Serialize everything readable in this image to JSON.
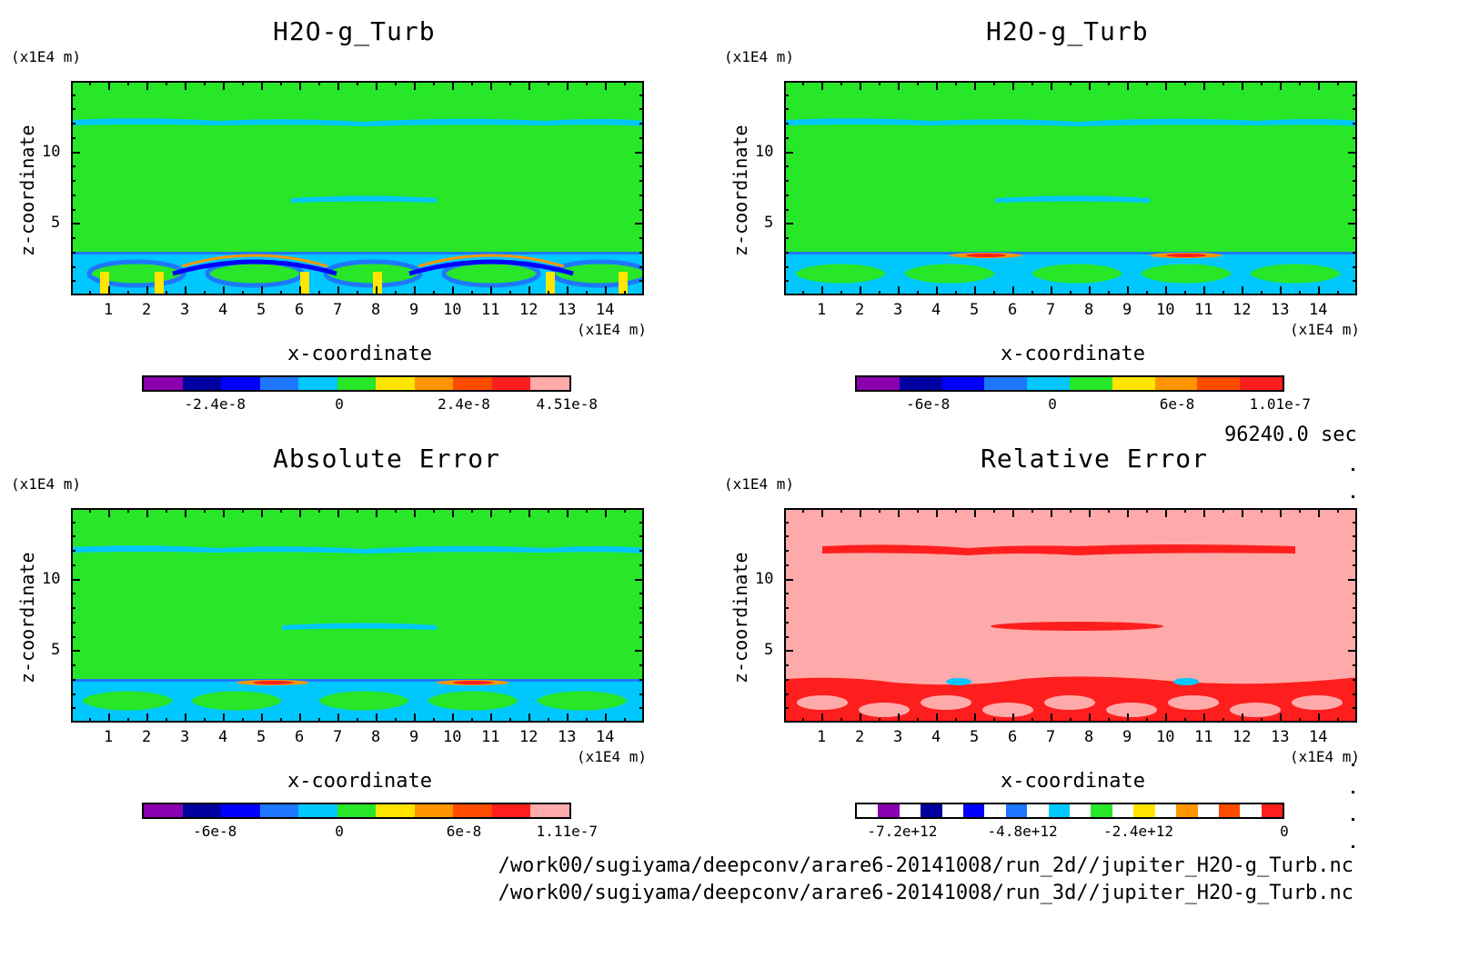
{
  "panels": [
    {
      "id": "p1",
      "title": "H2O-g_Turb",
      "y_unit": "(x1E4 m)",
      "x_unit": "(x1E4 m)",
      "xlabel": "x-coordinate",
      "ylabel": "z-coordinate",
      "xticks": [
        "1",
        "2",
        "3",
        "4",
        "5",
        "6",
        "7",
        "8",
        "9",
        "10",
        "11",
        "12",
        "13",
        "14"
      ],
      "yticks": [
        "5",
        "10"
      ],
      "field": "green-background-with-turbulent-boundary-layer",
      "colorbar": {
        "colors": [
          "#8a00b0",
          "#0000a0",
          "#0000ff",
          "#1e78ff",
          "#00c8ff",
          "#28e628",
          "#ffe600",
          "#ff9600",
          "#ff4b00",
          "#ff1e1e",
          "#ffaaaa"
        ],
        "labels": [
          "-2.4e-8",
          "0",
          "2.4e-8",
          "4.51e-8"
        ]
      }
    },
    {
      "id": "p2",
      "title": "H2O-g_Turb",
      "y_unit": "(x1E4 m)",
      "x_unit": "(x1E4 m)",
      "xlabel": "x-coordinate",
      "ylabel": "z-coordinate",
      "xticks": [
        "1",
        "2",
        "3",
        "4",
        "5",
        "6",
        "7",
        "8",
        "9",
        "10",
        "11",
        "12",
        "13",
        "14"
      ],
      "yticks": [
        "5",
        "10"
      ],
      "field": "green-background-with-turbulent-boundary-layer",
      "colorbar": {
        "colors": [
          "#8a00b0",
          "#0000a0",
          "#0000ff",
          "#1e78ff",
          "#00c8ff",
          "#28e628",
          "#ffe600",
          "#ff9600",
          "#ff4b00",
          "#ff1e1e"
        ],
        "labels": [
          "-6e-8",
          "0",
          "6e-8",
          "1.01e-7"
        ]
      }
    },
    {
      "id": "p3",
      "title": "Absolute Error",
      "y_unit": "(x1E4 m)",
      "x_unit": "(x1E4 m)",
      "xlabel": "x-coordinate",
      "ylabel": "z-coordinate",
      "xticks": [
        "1",
        "2",
        "3",
        "4",
        "5",
        "6",
        "7",
        "8",
        "9",
        "10",
        "11",
        "12",
        "13",
        "14"
      ],
      "yticks": [
        "5",
        "10"
      ],
      "field": "green-background-with-turbulent-boundary-layer",
      "colorbar": {
        "colors": [
          "#8a00b0",
          "#0000a0",
          "#0000ff",
          "#1e78ff",
          "#00c8ff",
          "#28e628",
          "#ffe600",
          "#ff9600",
          "#ff4b00",
          "#ff1e1e",
          "#ffaaaa"
        ],
        "labels": [
          "-6e-8",
          "0",
          "6e-8",
          "1.11e-7"
        ]
      }
    },
    {
      "id": "p4",
      "title": "Relative Error",
      "y_unit": "(x1E4 m)",
      "x_unit": "(x1E4 m)",
      "xlabel": "x-coordinate",
      "ylabel": "z-coordinate",
      "xticks": [
        "1",
        "2",
        "3",
        "4",
        "5",
        "6",
        "7",
        "8",
        "9",
        "10",
        "11",
        "12",
        "13",
        "14"
      ],
      "yticks": [
        "5",
        "10"
      ],
      "field": "pink-background-with-red-patches",
      "colorbar": {
        "colors": [
          "#ffffff",
          "#8a00b0",
          "#ffffff",
          "#0000a0",
          "#ffffff",
          "#0000ff",
          "#ffffff",
          "#1e78ff",
          "#ffffff",
          "#00c8ff",
          "#ffffff",
          "#28e628",
          "#ffffff",
          "#ffe600",
          "#ffffff",
          "#ff9600",
          "#ffffff",
          "#ff4b00",
          "#ffffff",
          "#ff1e1e"
        ],
        "labels": [
          "-7.2e+12",
          "-4.8e+12",
          "-2.4e+12",
          "0"
        ]
      }
    }
  ],
  "time_label": "96240.0 sec",
  "file_paths": [
    "/work00/sugiyama/deepconv/arare6-20141008/run_2d//jupiter_H2O-g_Turb.nc",
    "/work00/sugiyama/deepconv/arare6-20141008/run_3d//jupiter_H2O-g_Turb.nc"
  ],
  "chart_data": [
    {
      "type": "heatmap",
      "title": "H2O-g_Turb",
      "xlabel": "x-coordinate",
      "ylabel": "z-coordinate",
      "x_unit": "(x1E4 m)",
      "y_unit": "(x1E4 m)",
      "xlim": [
        0,
        15
      ],
      "ylim": [
        0,
        15
      ],
      "xticks": [
        1,
        2,
        3,
        4,
        5,
        6,
        7,
        8,
        9,
        10,
        11,
        12,
        13,
        14
      ],
      "yticks": [
        5,
        10
      ],
      "colorbar_ticks": [
        -2.4e-08,
        0,
        2.4e-08,
        4.51e-08
      ],
      "colorbar_max": 4.51e-08
    },
    {
      "type": "heatmap",
      "title": "H2O-g_Turb",
      "xlabel": "x-coordinate",
      "ylabel": "z-coordinate",
      "x_unit": "(x1E4 m)",
      "y_unit": "(x1E4 m)",
      "xlim": [
        0,
        15
      ],
      "ylim": [
        0,
        15
      ],
      "xticks": [
        1,
        2,
        3,
        4,
        5,
        6,
        7,
        8,
        9,
        10,
        11,
        12,
        13,
        14
      ],
      "yticks": [
        5,
        10
      ],
      "colorbar_ticks": [
        -6e-08,
        0,
        6e-08,
        1.01e-07
      ],
      "colorbar_max": 1.01e-07
    },
    {
      "type": "heatmap",
      "title": "Absolute Error",
      "xlabel": "x-coordinate",
      "ylabel": "z-coordinate",
      "x_unit": "(x1E4 m)",
      "y_unit": "(x1E4 m)",
      "xlim": [
        0,
        15
      ],
      "ylim": [
        0,
        15
      ],
      "xticks": [
        1,
        2,
        3,
        4,
        5,
        6,
        7,
        8,
        9,
        10,
        11,
        12,
        13,
        14
      ],
      "yticks": [
        5,
        10
      ],
      "colorbar_ticks": [
        -6e-08,
        0,
        6e-08,
        1.11e-07
      ],
      "colorbar_max": 1.11e-07
    },
    {
      "type": "heatmap",
      "title": "Relative Error",
      "xlabel": "x-coordinate",
      "ylabel": "z-coordinate",
      "x_unit": "(x1E4 m)",
      "y_unit": "(x1E4 m)",
      "xlim": [
        0,
        15
      ],
      "ylim": [
        0,
        15
      ],
      "xticks": [
        1,
        2,
        3,
        4,
        5,
        6,
        7,
        8,
        9,
        10,
        11,
        12,
        13,
        14
      ],
      "yticks": [
        5,
        10
      ],
      "colorbar_ticks": [
        -7200000000000.0,
        -4800000000000.0,
        -2400000000000.0,
        0
      ]
    }
  ]
}
